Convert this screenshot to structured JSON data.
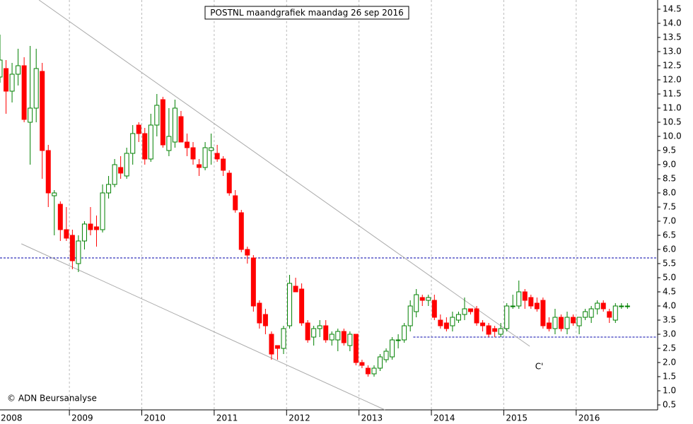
{
  "chart_data": {
    "type": "candlestick",
    "title": "POSTNL maandgrafiek maandag 26 sep 2016",
    "copyright": "© ADN Beursanalyse",
    "categories": [
      "2008",
      null,
      null,
      null,
      null,
      null,
      null,
      null,
      null,
      null,
      null,
      null,
      "2009",
      null,
      null,
      null,
      null,
      null,
      null,
      null,
      null,
      null,
      null,
      null,
      "2010",
      null,
      null,
      null,
      null,
      null,
      null,
      null,
      null,
      null,
      null,
      null,
      "2011",
      null,
      null,
      null,
      null,
      null,
      null,
      null,
      null,
      null,
      null,
      null,
      "2012",
      null,
      null,
      null,
      null,
      null,
      null,
      null,
      null,
      null,
      null,
      null,
      "2013",
      null,
      null,
      null,
      null,
      null,
      null,
      null,
      null,
      null,
      null,
      null,
      "2014",
      null,
      null,
      null,
      null,
      null,
      null,
      null,
      null,
      null,
      null,
      null,
      "2015",
      null,
      null,
      null,
      null,
      null,
      null,
      null,
      null,
      null,
      null,
      null,
      "2016",
      null,
      null,
      null,
      null,
      null,
      null,
      null,
      null
    ],
    "open": [
      12.1,
      12.4,
      11.6,
      12.2,
      12.5,
      10.5,
      11.0,
      12.3,
      9.5,
      7.9,
      7.6,
      6.7,
      6.5,
      5.5,
      6.3,
      6.9,
      6.8,
      6.7,
      8.0,
      8.3,
      8.9,
      8.6,
      9.4,
      10.4,
      10.1,
      9.2,
      10.4,
      11.3,
      9.5,
      9.8,
      10.7,
      9.8,
      9.6,
      9.0,
      8.9,
      9.5,
      9.4,
      9.2,
      8.7,
      7.9,
      7.3,
      6.0,
      5.7,
      4.1,
      3.7,
      3.0,
      2.6,
      2.5,
      3.3,
      4.7,
      4.6,
      3.4,
      2.9,
      3.2,
      3.3,
      2.8,
      2.8,
      3.1,
      2.6,
      3.0,
      2.0,
      1.8,
      1.6,
      1.8,
      2.1,
      2.2,
      2.8,
      2.8,
      3.3,
      3.8,
      4.3,
      4.2,
      4.2,
      3.5,
      3.4,
      3.3,
      3.5,
      3.7,
      3.9,
      3.9,
      3.4,
      3.3,
      3.2,
      3.0,
      3.2,
      4.0,
      4.0,
      4.5,
      4.3,
      4.1,
      4.2,
      3.4,
      3.2,
      3.6,
      3.2,
      3.6,
      3.3,
      3.6,
      3.6,
      3.9,
      4.1,
      3.8,
      3.5,
      4.0,
      4.0
    ],
    "high": [
      13.6,
      12.7,
      12.6,
      13.1,
      12.8,
      13.2,
      13.1,
      12.6,
      9.7,
      8.1,
      7.7,
      7.5,
      6.7,
      6.5,
      7.0,
      7.5,
      7.2,
      8.3,
      8.6,
      9.2,
      9.3,
      9.6,
      10.4,
      10.5,
      10.3,
      10.8,
      11.5,
      11.4,
      11.0,
      11.3,
      10.9,
      10.1,
      9.8,
      9.2,
      9.8,
      10.1,
      9.7,
      9.3,
      8.8,
      8.1,
      7.4,
      6.1,
      5.8,
      4.2,
      3.9,
      3.1,
      2.6,
      3.3,
      5.1,
      5.0,
      4.8,
      3.5,
      3.3,
      3.5,
      3.5,
      3.1,
      3.2,
      3.2,
      3.1,
      3.0,
      2.1,
      1.9,
      1.9,
      2.3,
      2.5,
      2.9,
      3.0,
      3.4,
      4.2,
      4.6,
      4.4,
      4.4,
      4.4,
      3.7,
      3.6,
      3.8,
      3.8,
      4.3,
      3.9,
      4.0,
      3.5,
      3.4,
      3.3,
      3.4,
      4.1,
      4.4,
      4.9,
      4.6,
      4.4,
      4.3,
      4.3,
      3.6,
      3.9,
      3.7,
      3.8,
      3.7,
      3.6,
      3.9,
      4.0,
      4.2,
      4.2,
      3.9,
      4.1,
      4.1,
      4.1
    ],
    "low": [
      11.9,
      10.8,
      11.2,
      11.8,
      10.5,
      9.0,
      10.5,
      8.5,
      7.5,
      6.5,
      6.3,
      6.3,
      5.3,
      5.2,
      6.0,
      6.5,
      6.1,
      6.6,
      7.8,
      8.2,
      8.5,
      8.5,
      9.0,
      9.8,
      9.0,
      9.1,
      10.0,
      9.6,
      9.3,
      9.6,
      9.8,
      9.3,
      9.0,
      8.6,
      8.8,
      9.0,
      9.1,
      8.6,
      7.9,
      7.3,
      5.9,
      5.5,
      3.8,
      3.2,
      3.0,
      2.1,
      2.1,
      2.3,
      3.2,
      4.5,
      3.3,
      2.7,
      2.6,
      2.9,
      2.7,
      2.6,
      2.4,
      2.6,
      2.4,
      1.9,
      1.8,
      1.5,
      1.5,
      1.7,
      2.0,
      2.1,
      2.5,
      2.7,
      3.1,
      3.6,
      4.0,
      4.0,
      3.5,
      3.2,
      3.1,
      3.1,
      3.4,
      3.5,
      3.7,
      3.3,
      3.1,
      2.9,
      2.9,
      2.9,
      3.1,
      3.9,
      3.9,
      3.9,
      3.9,
      3.8,
      3.2,
      3.1,
      3.0,
      3.1,
      3.0,
      3.3,
      3.0,
      3.5,
      3.4,
      3.7,
      3.8,
      3.4,
      3.4,
      3.9,
      3.9
    ],
    "close": [
      12.7,
      11.6,
      12.2,
      12.5,
      10.6,
      11.0,
      12.4,
      9.5,
      8.0,
      8.0,
      6.7,
      6.4,
      5.6,
      6.3,
      6.9,
      6.7,
      6.7,
      8.0,
      8.3,
      9.0,
      8.7,
      9.4,
      10.1,
      10.1,
      9.2,
      10.4,
      11.1,
      9.7,
      10.0,
      11.0,
      9.8,
      9.6,
      9.2,
      8.9,
      9.6,
      9.6,
      9.2,
      8.8,
      8.0,
      7.4,
      6.0,
      5.8,
      4.0,
      3.4,
      3.3,
      2.3,
      2.5,
      3.2,
      4.8,
      4.5,
      3.4,
      2.8,
      3.2,
      3.3,
      2.8,
      3.0,
      3.1,
      2.7,
      3.0,
      2.0,
      1.9,
      1.6,
      1.8,
      2.2,
      2.4,
      2.8,
      2.8,
      3.3,
      4.0,
      4.4,
      4.2,
      4.3,
      3.6,
      3.3,
      3.2,
      3.6,
      3.7,
      3.9,
      3.8,
      3.4,
      3.3,
      3.0,
      3.1,
      3.2,
      4.0,
      4.0,
      4.5,
      4.2,
      4.0,
      3.9,
      3.3,
      3.2,
      3.6,
      3.2,
      3.6,
      3.4,
      3.6,
      3.8,
      3.9,
      4.1,
      3.9,
      3.6,
      4.0,
      4.0,
      4.0
    ],
    "up_color": "#008000",
    "down_color": "#ff0000",
    "xlim": [
      0,
      109
    ],
    "ylim": [
      0.325,
      14.825
    ],
    "yticks": [
      0.5,
      {
        "value": 1,
        "label": "1.0"
      },
      1.5,
      {
        "value": 2,
        "label": "2.0"
      },
      2.5,
      {
        "value": 3,
        "label": "3.0"
      },
      3.5,
      {
        "value": 4,
        "label": "4.0"
      },
      4.5,
      {
        "value": 5,
        "label": "5.0"
      },
      5.5,
      {
        "value": 6,
        "label": "6.0"
      },
      6.5,
      {
        "value": 7,
        "label": "7.0"
      },
      7.5,
      {
        "value": 8,
        "label": "8.0"
      },
      8.5,
      {
        "value": 9,
        "label": "9.0"
      },
      9.5,
      {
        "value": 10,
        "label": "10.0"
      },
      10.5,
      {
        "value": 11,
        "label": "11.0"
      },
      11.5,
      {
        "value": 12,
        "label": "12.0"
      },
      12.5,
      {
        "value": 13,
        "label": "13.0"
      },
      13.5,
      {
        "value": 14,
        "label": "14.0"
      },
      14.5
    ],
    "levels": [
      {
        "value": 5.7,
        "from": 0,
        "color": "#0000aa"
      },
      {
        "value": 2.9,
        "from": 68.5,
        "color": "#0000aa"
      }
    ],
    "trendlines": [
      {
        "x": [
          6.46,
          87.8
        ],
        "y": [
          14.825,
          2.575
        ]
      },
      {
        "x": [
          3.54,
          63.8
        ],
        "y": [
          6.2,
          0.325
        ]
      }
    ],
    "annotation": {
      "text": "C'",
      "x": 88.7,
      "y": 1.85
    }
  }
}
